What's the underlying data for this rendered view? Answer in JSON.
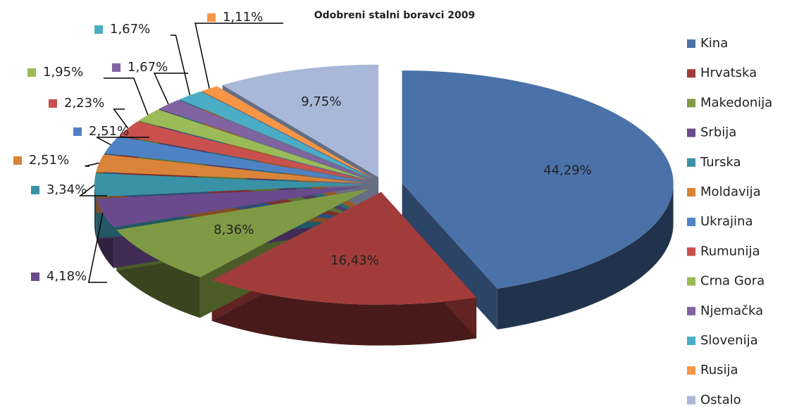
{
  "chart_data": {
    "type": "pie",
    "title": "Odobreni stalni boravci 2009",
    "categories": [
      "Kina",
      "Hrvatska",
      "Makedonija",
      "Srbija",
      "Turska",
      "Moldavija",
      "Ukrajina",
      "Rumunija",
      "Crna Gora",
      "Njemačka",
      "Slovenija",
      "Rusija",
      "Ostalo"
    ],
    "values": [
      44.29,
      16.43,
      8.36,
      4.18,
      3.34,
      2.51,
      2.51,
      2.23,
      1.95,
      1.67,
      1.67,
      1.11,
      9.75
    ],
    "value_labels": [
      "44,29%",
      "16,43%",
      "8,36%",
      "4,18%",
      "3,34%",
      "2,51%",
      "2,51%",
      "2,23%",
      "1,95%",
      "1,67%",
      "1,67%",
      "1,11%",
      "9,75%"
    ],
    "colors": [
      "#4a72a8",
      "#a13c3a",
      "#7f9a44",
      "#6a4a8c",
      "#3a92a6",
      "#d9843a",
      "#4f82c4",
      "#c9504d",
      "#9bbb59",
      "#8064a2",
      "#4bacc6",
      "#f79646",
      "#a9b8d9"
    ],
    "legend": "right"
  }
}
